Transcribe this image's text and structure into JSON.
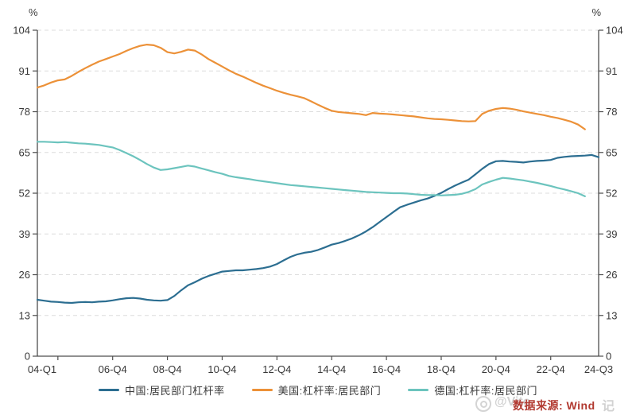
{
  "source_note": "数据来源: Wind",
  "watermark": {
    "handle": "@Vito",
    "suffix": "记"
  },
  "chart_data": {
    "type": "line",
    "title": "",
    "unit_left": "%",
    "unit_right": "%",
    "ylim": [
      0,
      104
    ],
    "y_ticks": [
      0,
      13,
      26,
      39,
      52,
      65,
      78,
      91,
      104
    ],
    "grid": "horizontal-dashed",
    "grid_color": "#dcdcdc",
    "axis_color": "#4d4d4d",
    "tick_label_color": "#383838",
    "legend_position": "bottom-center",
    "x_total_quarters": 82,
    "x_start_label": "2004-Q1",
    "x_tick_labels": [
      "04-Q1",
      "06-Q4",
      "08-Q4",
      "10-Q4",
      "12-Q4",
      "14-Q4",
      "16-Q4",
      "18-Q4",
      "20-Q4",
      "22-Q4",
      "24-Q3"
    ],
    "x_tick_quarters": [
      0,
      11,
      19,
      27,
      35,
      43,
      51,
      59,
      67,
      75,
      82
    ],
    "x_minor_tick_quarters": [
      3,
      11,
      19,
      27,
      35,
      43,
      51,
      59,
      67,
      75
    ],
    "series": [
      {
        "name": "中国:居民部门杠杆率",
        "color": "#2c6e91",
        "start_quarter": 0,
        "values": [
          18.0,
          17.7,
          17.4,
          17.3,
          17.1,
          17.0,
          17.2,
          17.3,
          17.2,
          17.4,
          17.5,
          17.8,
          18.2,
          18.5,
          18.6,
          18.4,
          18.0,
          17.8,
          17.7,
          17.9,
          19.2,
          21.0,
          22.6,
          23.6,
          24.7,
          25.6,
          26.3,
          27.0,
          27.2,
          27.4,
          27.4,
          27.6,
          27.8,
          28.1,
          28.6,
          29.4,
          30.6,
          31.7,
          32.5,
          33.0,
          33.3,
          33.9,
          34.7,
          35.6,
          36.1,
          36.8,
          37.6,
          38.6,
          39.8,
          41.2,
          42.8,
          44.4,
          46.0,
          47.5,
          48.3,
          49.0,
          49.7,
          50.3,
          51.1,
          52.1,
          53.3,
          54.4,
          55.4,
          56.3,
          58.0,
          59.8,
          61.3,
          62.2,
          62.3,
          62.1,
          62.0,
          61.8,
          62.1,
          62.3,
          62.4,
          62.6,
          63.3,
          63.6,
          63.8,
          63.9,
          64.0,
          64.2,
          63.5
        ]
      },
      {
        "name": "美国:杠杆率:居民部门",
        "color": "#ec9138",
        "start_quarter": 0,
        "values": [
          85.7,
          86.4,
          87.3,
          88.0,
          88.3,
          89.4,
          90.7,
          91.9,
          93.0,
          94.0,
          94.8,
          95.6,
          96.4,
          97.4,
          98.3,
          99.0,
          99.4,
          99.2,
          98.4,
          97.0,
          96.6,
          97.1,
          97.8,
          97.5,
          96.3,
          94.8,
          93.6,
          92.4,
          91.2,
          90.1,
          89.2,
          88.2,
          87.2,
          86.3,
          85.5,
          84.7,
          84.0,
          83.4,
          82.9,
          82.3,
          81.3,
          80.2,
          79.2,
          78.3,
          77.9,
          77.7,
          77.5,
          77.3,
          76.9,
          77.6,
          77.4,
          77.3,
          77.1,
          76.9,
          76.7,
          76.5,
          76.2,
          75.9,
          75.7,
          75.6,
          75.4,
          75.2,
          75.0,
          74.9,
          75.0,
          77.3,
          78.3,
          78.9,
          79.2,
          79.0,
          78.6,
          78.1,
          77.7,
          77.3,
          76.9,
          76.4,
          76.0,
          75.4,
          74.8,
          73.9,
          72.4
        ]
      },
      {
        "name": "德国:杠杆率:居民部门",
        "color": "#6cc4be",
        "start_quarter": 0,
        "values": [
          68.4,
          68.4,
          68.3,
          68.2,
          68.3,
          68.1,
          67.9,
          67.8,
          67.6,
          67.4,
          67.0,
          66.6,
          65.8,
          64.8,
          63.8,
          62.6,
          61.3,
          60.2,
          59.4,
          59.6,
          60.0,
          60.4,
          60.8,
          60.5,
          59.9,
          59.3,
          58.7,
          58.2,
          57.5,
          57.1,
          56.8,
          56.5,
          56.1,
          55.8,
          55.5,
          55.2,
          54.9,
          54.6,
          54.4,
          54.2,
          54.0,
          53.8,
          53.6,
          53.4,
          53.2,
          53.0,
          52.8,
          52.6,
          52.4,
          52.3,
          52.2,
          52.1,
          52.0,
          52.0,
          51.9,
          51.7,
          51.5,
          51.4,
          51.4,
          51.3,
          51.4,
          51.5,
          51.8,
          52.4,
          53.3,
          54.8,
          55.6,
          56.3,
          56.9,
          56.7,
          56.4,
          56.1,
          55.7,
          55.3,
          54.8,
          54.3,
          53.7,
          53.2,
          52.6,
          52.0,
          51.0
        ]
      }
    ]
  }
}
